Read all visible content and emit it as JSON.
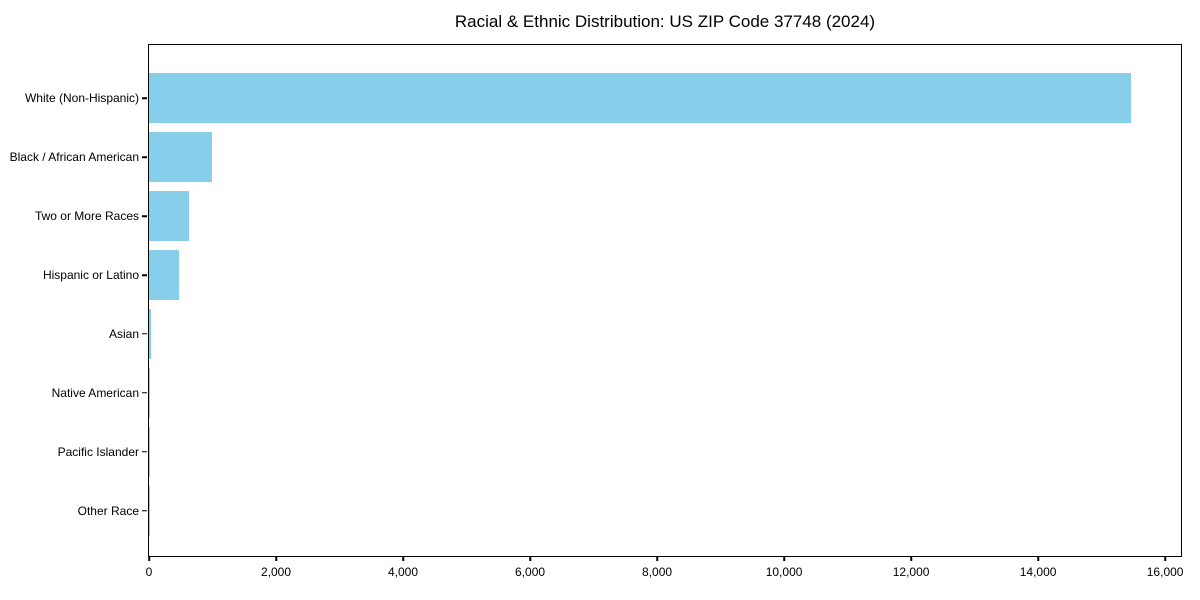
{
  "title": "Racial & Ethnic Distribution: US ZIP Code 37748 (2024)",
  "chart_data": {
    "type": "bar",
    "orientation": "horizontal",
    "title": "Racial & Ethnic Distribution: US ZIP Code 37748 (2024)",
    "categories": [
      "White (Non-Hispanic)",
      "Black / African American",
      "Two or More Races",
      "Hispanic or Latino",
      "Asian",
      "Native American",
      "Pacific Islander",
      "Other Race"
    ],
    "values": [
      15470,
      990,
      630,
      475,
      25,
      10,
      5,
      5
    ],
    "xlabel": "",
    "ylabel": "",
    "xlim": [
      0,
      16250
    ],
    "xticks": [
      0,
      2000,
      4000,
      6000,
      8000,
      10000,
      12000,
      14000,
      16000
    ],
    "xtick_labels": [
      "0",
      "2,000",
      "4,000",
      "6,000",
      "8,000",
      "10,000",
      "12,000",
      "14,000",
      "16,000"
    ],
    "bar_color": "#87CEEB",
    "grid": false,
    "legend": null,
    "background": "#ffffff",
    "spine_color": "#000000",
    "text_color": "#000000"
  }
}
